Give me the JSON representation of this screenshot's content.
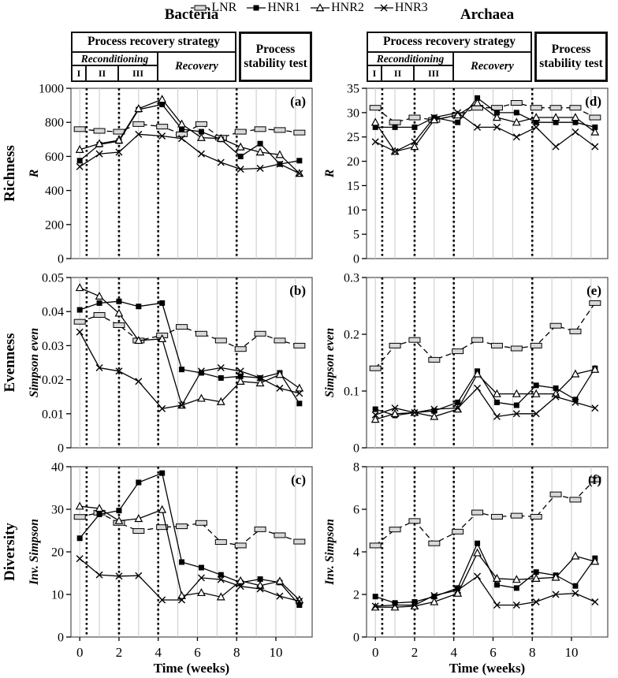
{
  "legend": {
    "items": [
      {
        "label": "LNR",
        "marker": "bar",
        "line": "dashed"
      },
      {
        "label": "HNR1",
        "marker": "square",
        "line": "solid"
      },
      {
        "label": "HNR2",
        "marker": "triangle",
        "line": "solid"
      },
      {
        "label": "HNR3",
        "marker": "x",
        "line": "solid"
      }
    ]
  },
  "column_titles": {
    "left": "Bacteria",
    "right": "Archaea"
  },
  "row_labels": [
    "Richness",
    "Evenness",
    "Diversity"
  ],
  "phase_header": {
    "strategy": "Process recovery strategy",
    "reconditioning": "Reconditioning",
    "phases": [
      "I",
      "II",
      "III"
    ],
    "recovery": "Recovery",
    "stability": "Process stability test"
  },
  "colors": {
    "line": "#000000",
    "lnr_marker_fill": "#d9d9d9",
    "gridline": "#c9c9c9",
    "plot_border": "#5a5a5a"
  },
  "x_axis": {
    "label": "Time (weeks)",
    "ticks": [
      0,
      2,
      4,
      6,
      8,
      10
    ],
    "dotted_weeks": [
      0.35,
      2,
      4,
      8
    ],
    "range_weeks": [
      -0.45,
      11.85
    ],
    "grid_every_week": true
  },
  "x_weeks": [
    0,
    1,
    2,
    3,
    4.2,
    5.2,
    6.2,
    7.2,
    8.2,
    9.2,
    10.2,
    11.2
  ],
  "chart_data": [
    {
      "id": "a",
      "panel_label": "(a)",
      "type": "line",
      "group": "Bacteria",
      "metric": "Richness",
      "ylabel": "R",
      "ylim": [
        0,
        1000
      ],
      "yticks": [
        0,
        200,
        400,
        600,
        800,
        1000
      ],
      "show_x_ticks": false,
      "series": [
        {
          "name": "LNR",
          "values": [
            760,
            750,
            745,
            790,
            775,
            730,
            790,
            710,
            745,
            760,
            755,
            740
          ]
        },
        {
          "name": "HNR1",
          "values": [
            575,
            670,
            690,
            875,
            905,
            760,
            745,
            700,
            600,
            675,
            555,
            575
          ]
        },
        {
          "name": "HNR2",
          "values": [
            640,
            675,
            695,
            880,
            935,
            790,
            710,
            705,
            655,
            625,
            610,
            500
          ]
        },
        {
          "name": "HNR3",
          "values": [
            540,
            615,
            625,
            730,
            720,
            705,
            615,
            565,
            525,
            530,
            555,
            500
          ]
        }
      ]
    },
    {
      "id": "b",
      "panel_label": "(b)",
      "type": "line",
      "group": "Bacteria",
      "metric": "Evenness",
      "ylabel": "Simpson even",
      "ylim": [
        0,
        0.05
      ],
      "yticks": [
        0,
        0.01,
        0.02,
        0.03,
        0.04,
        0.05
      ],
      "show_x_ticks": false,
      "series": [
        {
          "name": "LNR",
          "values": [
            0.037,
            0.039,
            0.036,
            0.0315,
            0.033,
            0.0355,
            0.0335,
            0.0315,
            0.029,
            0.0335,
            0.0315,
            0.03
          ]
        },
        {
          "name": "HNR1",
          "values": [
            0.0405,
            0.0425,
            0.043,
            0.0415,
            0.0425,
            0.023,
            0.022,
            0.0205,
            0.021,
            0.0205,
            0.022,
            0.013
          ]
        },
        {
          "name": "HNR2",
          "values": [
            0.047,
            0.0445,
            0.0395,
            0.0315,
            0.032,
            0.0125,
            0.0145,
            0.0135,
            0.0195,
            0.019,
            0.0215,
            0.0175
          ]
        },
        {
          "name": "HNR3",
          "values": [
            0.034,
            0.0235,
            0.0225,
            0.0195,
            0.0115,
            0.0125,
            0.0225,
            0.0235,
            0.0225,
            0.0205,
            0.0175,
            0.016
          ]
        }
      ]
    },
    {
      "id": "c",
      "panel_label": "(c)",
      "type": "line",
      "group": "Bacteria",
      "metric": "Diversity",
      "ylabel": "Inv. Simpson",
      "ylim": [
        0,
        40
      ],
      "yticks": [
        0,
        10,
        20,
        30,
        40
      ],
      "show_x_ticks": true,
      "series": [
        {
          "name": "LNR",
          "values": [
            28.2,
            29.2,
            26.8,
            24.9,
            25.8,
            26.0,
            26.8,
            22.3,
            21.5,
            25.3,
            23.9,
            22.4
          ]
        },
        {
          "name": "HNR1",
          "values": [
            23.2,
            28.8,
            29.7,
            36.3,
            38.5,
            17.6,
            16.3,
            14.6,
            12.8,
            13.6,
            12.8,
            7.5
          ]
        },
        {
          "name": "HNR2",
          "values": [
            30.7,
            30.2,
            27.3,
            27.8,
            29.9,
            9.7,
            10.4,
            9.4,
            13.2,
            12.1,
            13.1,
            8.7
          ]
        },
        {
          "name": "HNR3",
          "values": [
            18.4,
            14.6,
            14.3,
            14.4,
            8.7,
            8.7,
            13.9,
            13.5,
            11.9,
            11.3,
            9.6,
            8.4
          ]
        }
      ]
    },
    {
      "id": "d",
      "panel_label": "(d)",
      "type": "line",
      "group": "Archaea",
      "metric": "Richness",
      "ylabel": "R",
      "ylim": [
        0,
        35
      ],
      "yticks": [
        0,
        5,
        10,
        15,
        20,
        25,
        30,
        35
      ],
      "show_x_ticks": false,
      "series": [
        {
          "name": "LNR",
          "values": [
            31,
            28,
            29,
            28.5,
            29.5,
            31,
            31,
            32,
            31,
            31,
            31,
            29
          ]
        },
        {
          "name": "HNR1",
          "values": [
            27,
            27,
            27,
            29,
            28,
            33,
            30,
            30,
            28,
            28,
            28,
            27
          ]
        },
        {
          "name": "HNR2",
          "values": [
            28,
            22,
            23,
            28.5,
            29.5,
            32,
            29,
            28,
            29,
            29,
            29,
            26
          ]
        },
        {
          "name": "HNR3",
          "values": [
            24,
            22,
            24,
            29,
            30,
            27,
            27,
            25,
            27,
            23,
            26,
            23
          ]
        }
      ]
    },
    {
      "id": "e",
      "panel_label": "(e)",
      "type": "line",
      "group": "Archaea",
      "metric": "Evenness",
      "ylabel": "Simpson even",
      "ylim": [
        0,
        0.3
      ],
      "yticks": [
        0,
        0.1,
        0.2,
        0.3
      ],
      "show_x_ticks": false,
      "series": [
        {
          "name": "LNR",
          "values": [
            0.14,
            0.18,
            0.19,
            0.155,
            0.17,
            0.19,
            0.18,
            0.175,
            0.18,
            0.215,
            0.205,
            0.255
          ]
        },
        {
          "name": "HNR1",
          "values": [
            0.068,
            0.057,
            0.062,
            0.065,
            0.08,
            0.135,
            0.08,
            0.075,
            0.11,
            0.105,
            0.085,
            0.14
          ]
        },
        {
          "name": "HNR2",
          "values": [
            0.05,
            0.06,
            0.062,
            0.055,
            0.068,
            0.13,
            0.095,
            0.095,
            0.095,
            0.095,
            0.13,
            0.138
          ]
        },
        {
          "name": "HNR3",
          "values": [
            0.058,
            0.07,
            0.062,
            0.068,
            0.07,
            0.105,
            0.055,
            0.06,
            0.06,
            0.09,
            0.08,
            0.07
          ]
        }
      ]
    },
    {
      "id": "f",
      "panel_label": "(f)",
      "type": "line",
      "group": "Archaea",
      "metric": "Diversity",
      "ylabel": "Inv. Simpson",
      "ylim": [
        0,
        8
      ],
      "yticks": [
        0,
        2,
        4,
        6,
        8
      ],
      "show_x_ticks": true,
      "series": [
        {
          "name": "LNR",
          "values": [
            4.3,
            5.05,
            5.45,
            4.4,
            4.95,
            5.85,
            5.65,
            5.7,
            5.65,
            6.7,
            6.45,
            7.4
          ]
        },
        {
          "name": "HNR1",
          "values": [
            1.9,
            1.6,
            1.65,
            1.9,
            2.3,
            4.4,
            2.45,
            2.3,
            3.05,
            2.9,
            2.4,
            3.7
          ]
        },
        {
          "name": "HNR2",
          "values": [
            1.4,
            1.4,
            1.45,
            1.65,
            2.05,
            3.95,
            2.75,
            2.7,
            2.75,
            2.8,
            3.8,
            3.55
          ]
        },
        {
          "name": "HNR3",
          "values": [
            1.45,
            1.5,
            1.5,
            1.95,
            2.2,
            2.85,
            1.5,
            1.5,
            1.65,
            2.0,
            2.05,
            1.65
          ]
        }
      ]
    }
  ]
}
